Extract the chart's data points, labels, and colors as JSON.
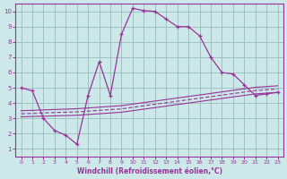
{
  "xlabel": "Windchill (Refroidissement éolien,°C)",
  "xlim": [
    -0.5,
    23.5
  ],
  "ylim": [
    0.5,
    10.5
  ],
  "xticks": [
    0,
    1,
    2,
    3,
    4,
    5,
    6,
    7,
    8,
    9,
    10,
    11,
    12,
    13,
    14,
    15,
    16,
    17,
    18,
    19,
    20,
    21,
    22,
    23
  ],
  "yticks": [
    1,
    2,
    3,
    4,
    5,
    6,
    7,
    8,
    9,
    10
  ],
  "bg_color": "#cce8e8",
  "line_color": "#993399",
  "grid_color": "#99bbbb",
  "line1_x": [
    0,
    1,
    2,
    3,
    4,
    5,
    6,
    7,
    8,
    9,
    10,
    11,
    12,
    13,
    14,
    15,
    16,
    17,
    18,
    19,
    20,
    21,
    22,
    23
  ],
  "line1_y": [
    5.0,
    4.8,
    3.0,
    2.2,
    1.9,
    1.3,
    4.5,
    6.7,
    4.5,
    8.5,
    10.2,
    10.05,
    10.0,
    9.5,
    9.0,
    9.0,
    8.4,
    7.0,
    6.0,
    5.9,
    5.2,
    4.5,
    4.6,
    4.7
  ],
  "line2_x": [
    0,
    1,
    2,
    3,
    4,
    5,
    6,
    7,
    8,
    9,
    10,
    11,
    12,
    13,
    14,
    15,
    16,
    17,
    18,
    19,
    20,
    21,
    22,
    23
  ],
  "line2_y": [
    3.1,
    3.12,
    3.14,
    3.16,
    3.18,
    3.2,
    3.25,
    3.3,
    3.35,
    3.4,
    3.5,
    3.6,
    3.7,
    3.8,
    3.9,
    4.0,
    4.1,
    4.2,
    4.3,
    4.4,
    4.5,
    4.6,
    4.65,
    4.7
  ],
  "line3_x": [
    0,
    1,
    2,
    3,
    4,
    5,
    6,
    7,
    8,
    9,
    10,
    11,
    12,
    13,
    14,
    15,
    16,
    17,
    18,
    19,
    20,
    21,
    22,
    23
  ],
  "line3_y": [
    3.3,
    3.32,
    3.35,
    3.38,
    3.4,
    3.42,
    3.47,
    3.52,
    3.57,
    3.62,
    3.72,
    3.82,
    3.92,
    4.02,
    4.12,
    4.22,
    4.32,
    4.42,
    4.52,
    4.62,
    4.72,
    4.82,
    4.87,
    4.92
  ],
  "line4_x": [
    0,
    1,
    2,
    3,
    4,
    5,
    6,
    7,
    8,
    9,
    10,
    11,
    12,
    13,
    14,
    15,
    16,
    17,
    18,
    19,
    20,
    21,
    22,
    23
  ],
  "line4_y": [
    3.5,
    3.52,
    3.55,
    3.58,
    3.6,
    3.63,
    3.68,
    3.73,
    3.78,
    3.83,
    3.93,
    4.03,
    4.13,
    4.23,
    4.33,
    4.43,
    4.53,
    4.63,
    4.73,
    4.83,
    4.93,
    5.03,
    5.08,
    5.13
  ]
}
